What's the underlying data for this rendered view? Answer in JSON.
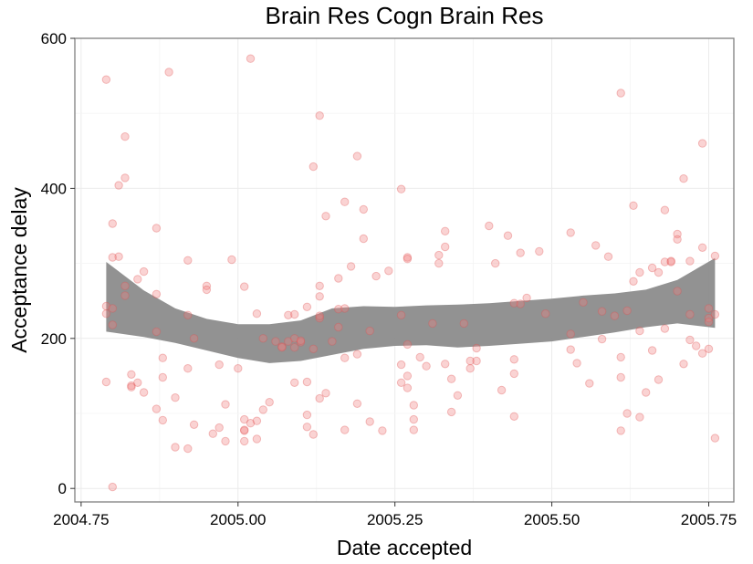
{
  "chart_data": {
    "type": "scatter",
    "title": "Brain Res Cogn Brain Res",
    "xlabel": "Date accepted",
    "ylabel": "Acceptance delay",
    "xlim": [
      2004.74,
      2005.79
    ],
    "ylim": [
      -18,
      600
    ],
    "x_ticks": [
      2004.75,
      2005.0,
      2005.25,
      2005.5,
      2005.75
    ],
    "x_tick_labels": [
      "2004.75",
      "2005.00",
      "2005.25",
      "2005.50",
      "2005.75"
    ],
    "y_ticks": [
      0,
      200,
      400,
      600
    ],
    "y_tick_labels": [
      "0",
      "200",
      "400",
      "600"
    ],
    "grid": true,
    "point_color": "#f08080",
    "band_color": "#8c8c8c",
    "points": [
      [
        2004.79,
        545
      ],
      [
        2004.79,
        233
      ],
      [
        2004.79,
        142
      ],
      [
        2004.79,
        243
      ],
      [
        2004.8,
        308
      ],
      [
        2004.8,
        240
      ],
      [
        2004.8,
        218
      ],
      [
        2004.8,
        353
      ],
      [
        2004.8,
        2
      ],
      [
        2004.81,
        404
      ],
      [
        2004.81,
        309
      ],
      [
        2004.82,
        270
      ],
      [
        2004.82,
        469
      ],
      [
        2004.82,
        414
      ],
      [
        2004.82,
        257
      ],
      [
        2004.83,
        152
      ],
      [
        2004.83,
        137
      ],
      [
        2004.83,
        135
      ],
      [
        2004.84,
        279
      ],
      [
        2004.84,
        141
      ],
      [
        2004.85,
        289
      ],
      [
        2004.85,
        128
      ],
      [
        2004.87,
        347
      ],
      [
        2004.87,
        259
      ],
      [
        2004.87,
        209
      ],
      [
        2004.87,
        106
      ],
      [
        2004.88,
        174
      ],
      [
        2004.88,
        148
      ],
      [
        2004.88,
        91
      ],
      [
        2004.89,
        555
      ],
      [
        2004.9,
        55
      ],
      [
        2004.9,
        121
      ],
      [
        2004.92,
        53
      ],
      [
        2004.92,
        160
      ],
      [
        2004.92,
        231
      ],
      [
        2004.92,
        304
      ],
      [
        2004.93,
        85
      ],
      [
        2004.93,
        200
      ],
      [
        2004.95,
        270
      ],
      [
        2004.95,
        265
      ],
      [
        2004.96,
        73
      ],
      [
        2004.97,
        165
      ],
      [
        2004.97,
        81
      ],
      [
        2004.98,
        112
      ],
      [
        2004.98,
        63
      ],
      [
        2004.99,
        305
      ],
      [
        2005.0,
        160
      ],
      [
        2005.01,
        63
      ],
      [
        2005.01,
        77
      ],
      [
        2005.01,
        78
      ],
      [
        2005.01,
        92
      ],
      [
        2005.01,
        269
      ],
      [
        2005.02,
        87
      ],
      [
        2005.02,
        573
      ],
      [
        2005.03,
        66
      ],
      [
        2005.03,
        90
      ],
      [
        2005.03,
        233
      ],
      [
        2005.04,
        105
      ],
      [
        2005.04,
        200
      ],
      [
        2005.05,
        115
      ],
      [
        2005.06,
        196
      ],
      [
        2005.07,
        189
      ],
      [
        2005.07,
        188
      ],
      [
        2005.08,
        231
      ],
      [
        2005.08,
        196
      ],
      [
        2005.09,
        200
      ],
      [
        2005.09,
        188
      ],
      [
        2005.09,
        141
      ],
      [
        2005.09,
        232
      ],
      [
        2005.1,
        195
      ],
      [
        2005.1,
        197
      ],
      [
        2005.11,
        242
      ],
      [
        2005.11,
        82
      ],
      [
        2005.11,
        98
      ],
      [
        2005.11,
        142
      ],
      [
        2005.12,
        72
      ],
      [
        2005.12,
        429
      ],
      [
        2005.12,
        186
      ],
      [
        2005.13,
        227
      ],
      [
        2005.13,
        120
      ],
      [
        2005.13,
        256
      ],
      [
        2005.13,
        270
      ],
      [
        2005.13,
        230
      ],
      [
        2005.13,
        497
      ],
      [
        2005.14,
        127
      ],
      [
        2005.14,
        363
      ],
      [
        2005.15,
        196
      ],
      [
        2005.16,
        239
      ],
      [
        2005.16,
        215
      ],
      [
        2005.16,
        280
      ],
      [
        2005.17,
        382
      ],
      [
        2005.17,
        240
      ],
      [
        2005.17,
        78
      ],
      [
        2005.17,
        174
      ],
      [
        2005.18,
        296
      ],
      [
        2005.19,
        443
      ],
      [
        2005.19,
        179
      ],
      [
        2005.19,
        113
      ],
      [
        2005.2,
        333
      ],
      [
        2005.2,
        372
      ],
      [
        2005.21,
        210
      ],
      [
        2005.21,
        89
      ],
      [
        2005.22,
        283
      ],
      [
        2005.23,
        77
      ],
      [
        2005.24,
        290
      ],
      [
        2005.26,
        399
      ],
      [
        2005.26,
        231
      ],
      [
        2005.26,
        141
      ],
      [
        2005.26,
        165
      ],
      [
        2005.27,
        150
      ],
      [
        2005.27,
        308
      ],
      [
        2005.27,
        306
      ],
      [
        2005.27,
        192
      ],
      [
        2005.27,
        134
      ],
      [
        2005.28,
        111
      ],
      [
        2005.28,
        92
      ],
      [
        2005.28,
        78
      ],
      [
        2005.29,
        175
      ],
      [
        2005.3,
        163
      ],
      [
        2005.31,
        220
      ],
      [
        2005.32,
        311
      ],
      [
        2005.32,
        300
      ],
      [
        2005.33,
        322
      ],
      [
        2005.33,
        343
      ],
      [
        2005.33,
        166
      ],
      [
        2005.34,
        146
      ],
      [
        2005.34,
        102
      ],
      [
        2005.35,
        124
      ],
      [
        2005.36,
        220
      ],
      [
        2005.37,
        160
      ],
      [
        2005.37,
        170
      ],
      [
        2005.38,
        187
      ],
      [
        2005.38,
        170
      ],
      [
        2005.4,
        350
      ],
      [
        2005.41,
        300
      ],
      [
        2005.42,
        131
      ],
      [
        2005.43,
        337
      ],
      [
        2005.44,
        172
      ],
      [
        2005.44,
        96
      ],
      [
        2005.44,
        153
      ],
      [
        2005.44,
        247
      ],
      [
        2005.45,
        246
      ],
      [
        2005.45,
        314
      ],
      [
        2005.46,
        254
      ],
      [
        2005.48,
        316
      ],
      [
        2005.49,
        233
      ],
      [
        2005.53,
        341
      ],
      [
        2005.53,
        206
      ],
      [
        2005.53,
        185
      ],
      [
        2005.54,
        167
      ],
      [
        2005.55,
        248
      ],
      [
        2005.56,
        140
      ],
      [
        2005.57,
        324
      ],
      [
        2005.58,
        199
      ],
      [
        2005.58,
        236
      ],
      [
        2005.59,
        309
      ],
      [
        2005.6,
        230
      ],
      [
        2005.61,
        527
      ],
      [
        2005.61,
        175
      ],
      [
        2005.61,
        77
      ],
      [
        2005.61,
        148
      ],
      [
        2005.62,
        100
      ],
      [
        2005.62,
        237
      ],
      [
        2005.63,
        377
      ],
      [
        2005.63,
        276
      ],
      [
        2005.64,
        210
      ],
      [
        2005.64,
        288
      ],
      [
        2005.64,
        95
      ],
      [
        2005.65,
        128
      ],
      [
        2005.66,
        294
      ],
      [
        2005.66,
        184
      ],
      [
        2005.67,
        145
      ],
      [
        2005.67,
        288
      ],
      [
        2005.68,
        371
      ],
      [
        2005.68,
        302
      ],
      [
        2005.68,
        213
      ],
      [
        2005.69,
        302
      ],
      [
        2005.69,
        303
      ],
      [
        2005.7,
        339
      ],
      [
        2005.7,
        332
      ],
      [
        2005.7,
        263
      ],
      [
        2005.71,
        166
      ],
      [
        2005.71,
        413
      ],
      [
        2005.72,
        303
      ],
      [
        2005.72,
        198
      ],
      [
        2005.72,
        232
      ],
      [
        2005.73,
        190
      ],
      [
        2005.74,
        321
      ],
      [
        2005.74,
        180
      ],
      [
        2005.74,
        460
      ],
      [
        2005.75,
        186
      ],
      [
        2005.75,
        240
      ],
      [
        2005.75,
        227
      ],
      [
        2005.75,
        222
      ],
      [
        2005.76,
        310
      ],
      [
        2005.76,
        232
      ],
      [
        2005.76,
        67
      ]
    ],
    "band": {
      "x": [
        2004.79,
        2004.85,
        2004.9,
        2004.95,
        2005.0,
        2005.05,
        2005.1,
        2005.15,
        2005.2,
        2005.25,
        2005.3,
        2005.35,
        2005.4,
        2005.45,
        2005.5,
        2005.55,
        2005.6,
        2005.65,
        2005.7,
        2005.76
      ],
      "upper": [
        302,
        264,
        240,
        226,
        219,
        219,
        224,
        240,
        243,
        242,
        244,
        245,
        247,
        250,
        253,
        257,
        260,
        265,
        278,
        307
      ],
      "lower": [
        209,
        202,
        194,
        184,
        174,
        167,
        170,
        178,
        186,
        190,
        191,
        188,
        190,
        193,
        196,
        202,
        208,
        215,
        220,
        214
      ]
    }
  }
}
